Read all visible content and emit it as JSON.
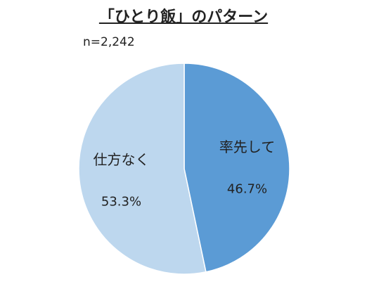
{
  "chart_data": {
    "type": "pie",
    "title": "「ひとり飯」のパターン",
    "subtitle": "n=2,242",
    "categories": [
      "率先して",
      "仕方なく"
    ],
    "values": [
      46.7,
      53.3
    ],
    "value_labels": [
      "46.7%",
      "53.3%"
    ],
    "colors": [
      "#5b9bd5",
      "#bdd7ee"
    ]
  }
}
